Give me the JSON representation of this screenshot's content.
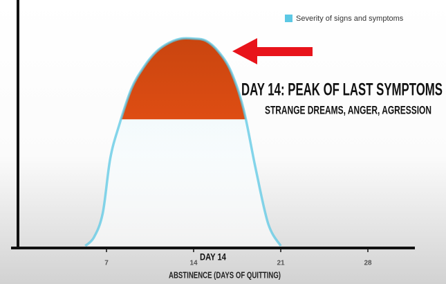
{
  "chart_data": {
    "type": "area",
    "x_label": "ABSTINENCE (DAYS OF QUITTING)",
    "x": [
      5.3,
      6,
      6.7,
      7.3,
      8,
      9,
      10,
      11,
      12,
      13,
      14,
      15,
      16,
      17,
      18,
      19,
      20,
      21
    ],
    "series": [
      {
        "name": "Severity of signs and symptoms",
        "color": "#5cc8e4",
        "values": [
          0,
          4,
          15,
          40,
          55,
          72,
          82,
          89,
          93,
          95,
          95,
          94,
          89,
          80,
          63,
          35,
          10,
          0
        ]
      }
    ],
    "xlim": [
      0,
      32
    ],
    "xticks": [
      7,
      14,
      21,
      28
    ],
    "ylim": [
      0,
      100
    ],
    "legend_position": "top-right",
    "highlight": {
      "threshold": 58,
      "color": "#f0501a"
    },
    "annotations": [
      {
        "text": "DAY 14: PEAK OF LAST SYMPTOMS"
      },
      {
        "text": "STRANGE DREAMS, ANGER, AGRESSION"
      },
      {
        "text": "DAY 14",
        "x": 14
      }
    ]
  }
}
